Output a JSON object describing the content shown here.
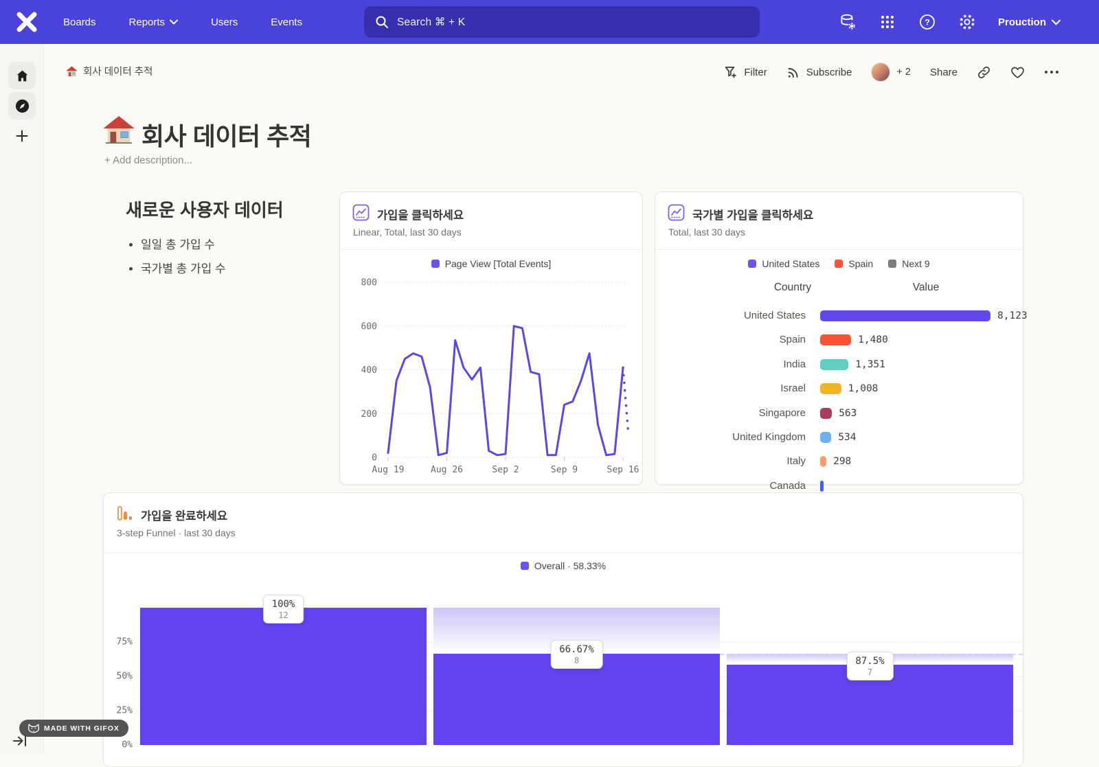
{
  "nav": {
    "items": [
      "Boards",
      "Reports",
      "Users",
      "Events"
    ],
    "search_placeholder": "Search  ⌘ + K",
    "environment": "Prouction"
  },
  "breadcrumb": {
    "title": "회사 데이터 추적"
  },
  "toolbar": {
    "filter_label": "Filter",
    "subscribe_label": "Subscribe",
    "avatar_more": "+ 2",
    "share_label": "Share"
  },
  "page": {
    "title": "회사 데이터 추적",
    "add_description": "+ Add description..."
  },
  "text_section": {
    "heading": "새로운 사용자 데이터",
    "bullets": [
      "일일 총 가입 수",
      "국가별 총 가입 수"
    ]
  },
  "chart_data": [
    {
      "type": "line",
      "title": "가입을 클릭하세요",
      "subtitle": "Linear, Total, last 30 days",
      "legend": [
        {
          "label": "Page View [Total Events]",
          "color": "#6b54f0"
        }
      ],
      "ylim": [
        0,
        800
      ],
      "yticks": [
        0,
        200,
        400,
        600,
        800
      ],
      "xticks": [
        "Aug 19",
        "Aug 26",
        "Sep 2",
        "Sep 9",
        "Sep 16"
      ],
      "grid": true,
      "series": [
        {
          "name": "Page View [Total Events]",
          "color": "#5a48e6",
          "values": [
            20,
            350,
            450,
            475,
            460,
            320,
            10,
            20,
            535,
            410,
            355,
            410,
            30,
            10,
            15,
            600,
            590,
            390,
            380,
            10,
            10,
            240,
            255,
            350,
            475,
            150,
            10,
            15,
            410
          ]
        }
      ],
      "incomplete_tail": {
        "style": "dotted",
        "to_value": 100
      }
    },
    {
      "type": "bar",
      "title": "국가별 가입을 클릭하세요",
      "subtitle": "Total, last 30 days",
      "legend": [
        {
          "label": "United States",
          "color": "#6b54f0"
        },
        {
          "label": "Spain",
          "color": "#f65434"
        },
        {
          "label": "Next 9",
          "color": "#7d7d7d"
        }
      ],
      "columns": [
        "Country",
        "Value"
      ],
      "rows": [
        {
          "label": "United States",
          "value": 8123,
          "display": "8,123",
          "color": "#6447ec"
        },
        {
          "label": "Spain",
          "value": 1480,
          "display": "1,480",
          "color": "#f65434"
        },
        {
          "label": "India",
          "value": 1351,
          "display": "1,351",
          "color": "#5fd0c0"
        },
        {
          "label": "Israel",
          "value": 1008,
          "display": "1,008",
          "color": "#f0b429"
        },
        {
          "label": "Singapore",
          "value": 563,
          "display": "563",
          "color": "#a63d5c"
        },
        {
          "label": "United Kingdom",
          "value": 534,
          "display": "534",
          "color": "#6cb1f0"
        },
        {
          "label": "Italy",
          "value": 298,
          "display": "298",
          "color": "#f89e6b"
        },
        {
          "label": "Canada",
          "value": null,
          "display": "",
          "color": "#4161ea",
          "partial": true
        }
      ]
    },
    {
      "type": "funnel",
      "title": "가입을 완료하세요",
      "subtitle": "3-step Funnel · last 30 days",
      "legend": [
        {
          "label": "Overall · 58.33%",
          "color": "#6b54f0"
        }
      ],
      "yticks": [
        "0%",
        "25%",
        "50%",
        "75%"
      ],
      "bar_color": "#6243ee",
      "steps": [
        {
          "conversion": "100%",
          "count": "12",
          "overall_pct": 100
        },
        {
          "conversion": "66.67%",
          "count": "8",
          "overall_pct": 66.67
        },
        {
          "conversion": "87.5%",
          "count": "7",
          "overall_pct": 58.33
        }
      ]
    }
  ],
  "made_with_badge": "MADE WITH GIFOX"
}
